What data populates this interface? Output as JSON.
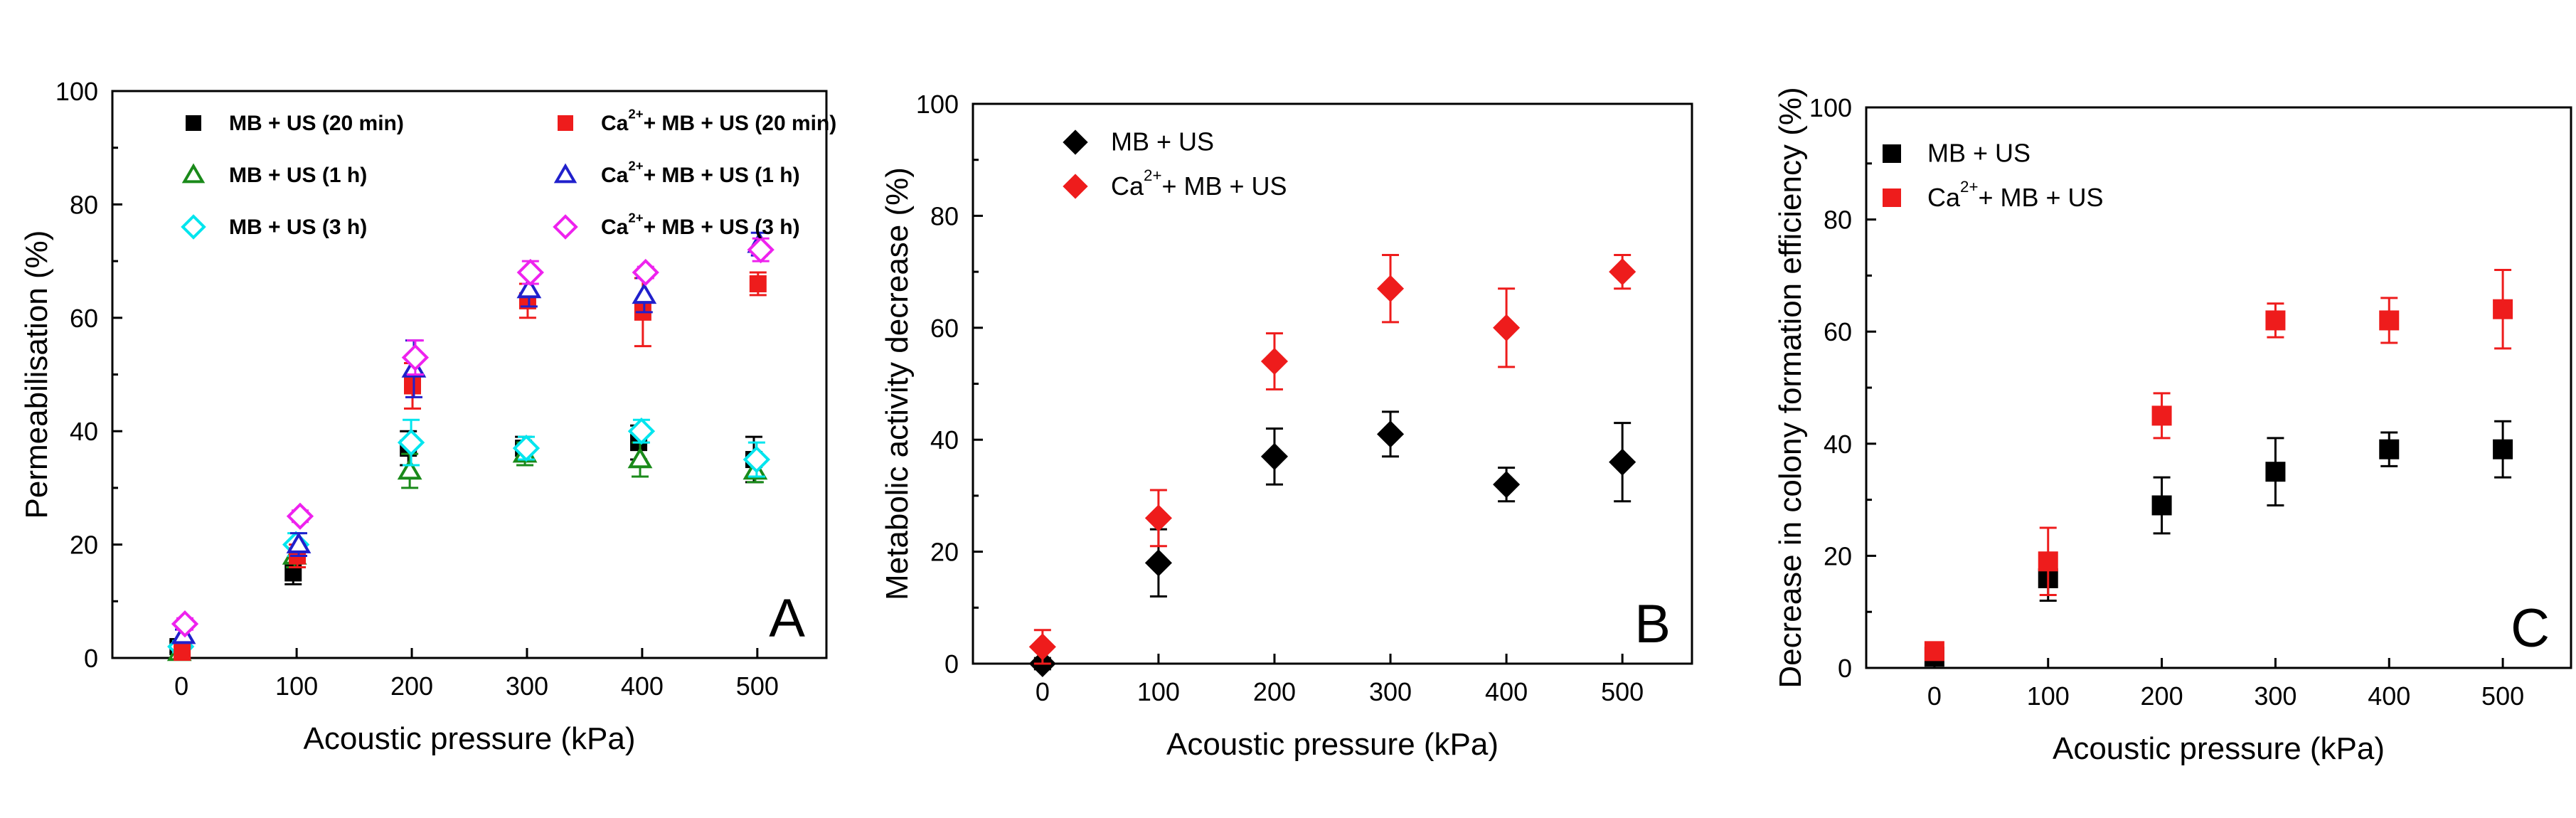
{
  "chart_data": [
    {
      "type": "scatter",
      "panel_label": "A",
      "xlabel": "Acoustic pressure (kPa)",
      "ylabel": "Permeabilisation (%)",
      "xlim": [
        -60,
        560
      ],
      "ylim": [
        0,
        100
      ],
      "xticks": [
        0,
        100,
        200,
        300,
        400,
        500
      ],
      "yticks": [
        0,
        20,
        40,
        60,
        80,
        100
      ],
      "x": [
        0,
        100,
        200,
        300,
        400,
        500
      ],
      "legend_position": "top",
      "legend_bold": true,
      "series": [
        {
          "name": "MB + US (20 min)",
          "sup": "",
          "marker": "square",
          "filled": true,
          "color": "#000000",
          "values": [
            2,
            15,
            37,
            37,
            38,
            35
          ],
          "errors": [
            1,
            2,
            3,
            2,
            3,
            4
          ]
        },
        {
          "name": "MB + US (1 h)",
          "sup": "",
          "marker": "triangle",
          "filled": false,
          "color": "#1a8a1a",
          "values": [
            1,
            18,
            33,
            36,
            35,
            33
          ],
          "errors": [
            1,
            2,
            3,
            2,
            3,
            2
          ]
        },
        {
          "name": "MB + US (3 h)",
          "sup": "",
          "marker": "diamond",
          "filled": false,
          "color": "#00e5ee",
          "values": [
            2,
            20,
            38,
            37,
            40,
            35
          ],
          "errors": [
            1,
            2,
            4,
            2,
            2,
            3
          ]
        },
        {
          "name": "+ MB + US (20 min)",
          "sup": "2+",
          "base": "Ca",
          "marker": "square",
          "filled": true,
          "color": "#ee1c1c",
          "values": [
            1,
            18,
            48,
            63,
            61,
            66
          ],
          "errors": [
            1,
            2,
            4,
            3,
            6,
            2
          ]
        },
        {
          "name": "+ MB + US (1 h)",
          "sup": "2+",
          "base": "Ca",
          "marker": "triangle",
          "filled": false,
          "color": "#2020cc",
          "values": [
            4,
            20,
            51,
            65,
            64,
            73
          ],
          "errors": [
            1,
            2,
            5,
            3,
            3,
            2
          ]
        },
        {
          "name": "+ MB + US (3 h)",
          "sup": "2+",
          "base": "Ca",
          "marker": "diamond",
          "filled": false,
          "color": "#ee22ee",
          "values": [
            6,
            25,
            53,
            68,
            68,
            72
          ],
          "errors": [
            1,
            1,
            3,
            2,
            1,
            2
          ]
        }
      ]
    },
    {
      "type": "scatter",
      "panel_label": "B",
      "xlabel": "Acoustic pressure (kPa)",
      "ylabel": "Metabolic activity decrease (%)",
      "xlim": [
        -60,
        560
      ],
      "ylim": [
        0,
        100
      ],
      "xticks": [
        0,
        100,
        200,
        300,
        400,
        500
      ],
      "yticks": [
        0,
        20,
        40,
        60,
        80,
        100
      ],
      "x": [
        0,
        100,
        200,
        300,
        400,
        500
      ],
      "legend_position": "top-left",
      "legend_bold": false,
      "series": [
        {
          "name": "MB + US",
          "sup": "",
          "marker": "diamond",
          "filled": true,
          "color": "#000000",
          "values": [
            0,
            18,
            37,
            41,
            32,
            36
          ],
          "errors": [
            1,
            6,
            5,
            4,
            3,
            7
          ]
        },
        {
          "name": "+ MB + US",
          "sup": "2+",
          "base": "Ca",
          "marker": "diamond",
          "filled": true,
          "color": "#ee1c1c",
          "values": [
            3,
            26,
            54,
            67,
            60,
            70
          ],
          "errors": [
            3,
            5,
            5,
            6,
            7,
            3
          ]
        }
      ]
    },
    {
      "type": "scatter",
      "panel_label": "C",
      "xlabel": "Acoustic pressure (kPa)",
      "ylabel": "Decrease in colony formation efficiency (%)",
      "xlim": [
        -60,
        560
      ],
      "ylim": [
        0,
        100
      ],
      "xticks": [
        0,
        100,
        200,
        300,
        400,
        500
      ],
      "yticks": [
        0,
        20,
        40,
        60,
        80,
        100
      ],
      "x": [
        0,
        100,
        200,
        300,
        400,
        500
      ],
      "legend_position": "top-left",
      "legend_bold": false,
      "series": [
        {
          "name": "MB + US",
          "sup": "",
          "marker": "square",
          "filled": true,
          "color": "#000000",
          "values": [
            2,
            16,
            29,
            35,
            39,
            39
          ],
          "errors": [
            1,
            4,
            5,
            6,
            3,
            5
          ]
        },
        {
          "name": "+ MB + US",
          "sup": "2+",
          "base": "Ca",
          "marker": "square",
          "filled": true,
          "color": "#ee1c1c",
          "values": [
            3,
            19,
            45,
            62,
            62,
            64
          ],
          "errors": [
            1,
            6,
            4,
            3,
            4,
            7
          ]
        }
      ]
    }
  ]
}
